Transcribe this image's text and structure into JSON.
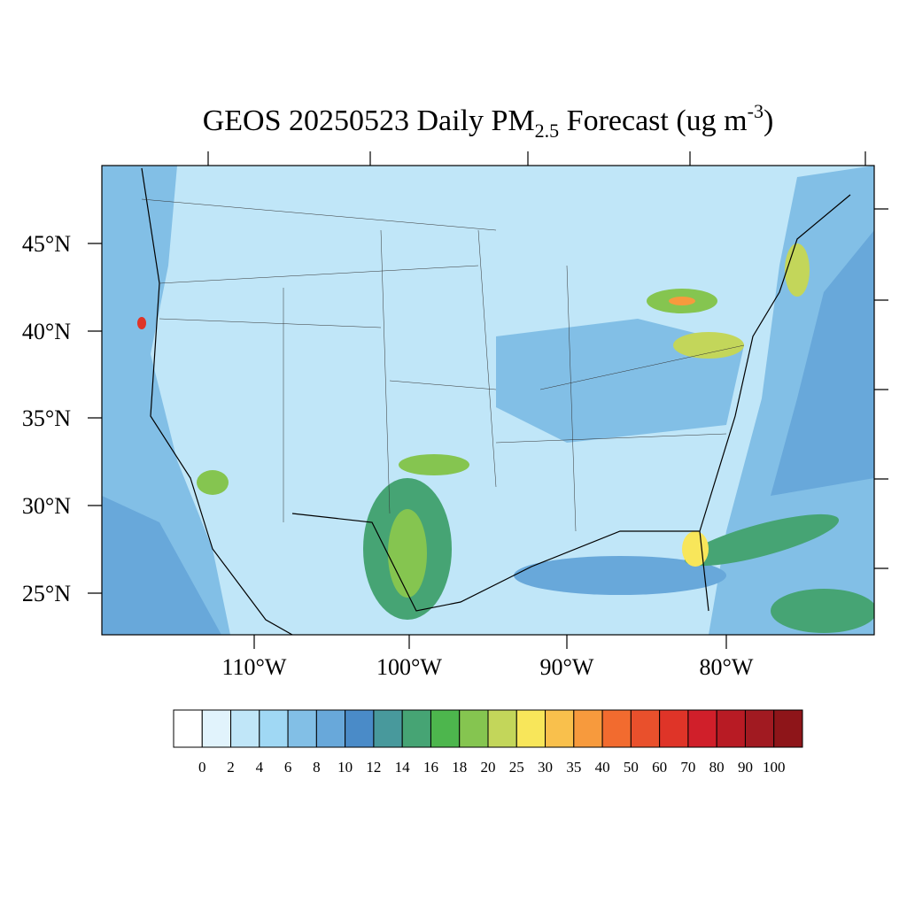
{
  "title": {
    "parts": [
      "GEOS 20250523 Daily PM",
      "2.5",
      " Forecast (ug m",
      "-3",
      ")"
    ]
  },
  "lat_labels": [
    "45°N",
    "40°N",
    "35°N",
    "30°N",
    "25°N"
  ],
  "lon_labels": [
    "110°W",
    "100°W",
    "90°W",
    "80°W"
  ],
  "colorbar": {
    "colors": [
      "#ffffff",
      "#e1f3fc",
      "#c0e6f8",
      "#a0d8f4",
      "#82bfe6",
      "#68a8da",
      "#4a8bc8",
      "#48999c",
      "#46a474",
      "#4db64d",
      "#85c550",
      "#c3d65a",
      "#f8e65a",
      "#f9c04c",
      "#f79a3d",
      "#f26b2f",
      "#e9502c",
      "#df3428",
      "#d01f2a",
      "#b81b24",
      "#a11a21",
      "#8e1519"
    ],
    "labels": [
      0,
      2,
      4,
      6,
      8,
      10,
      12,
      14,
      16,
      18,
      20,
      25,
      30,
      35,
      40,
      50,
      60,
      70,
      80,
      90,
      100
    ]
  }
}
